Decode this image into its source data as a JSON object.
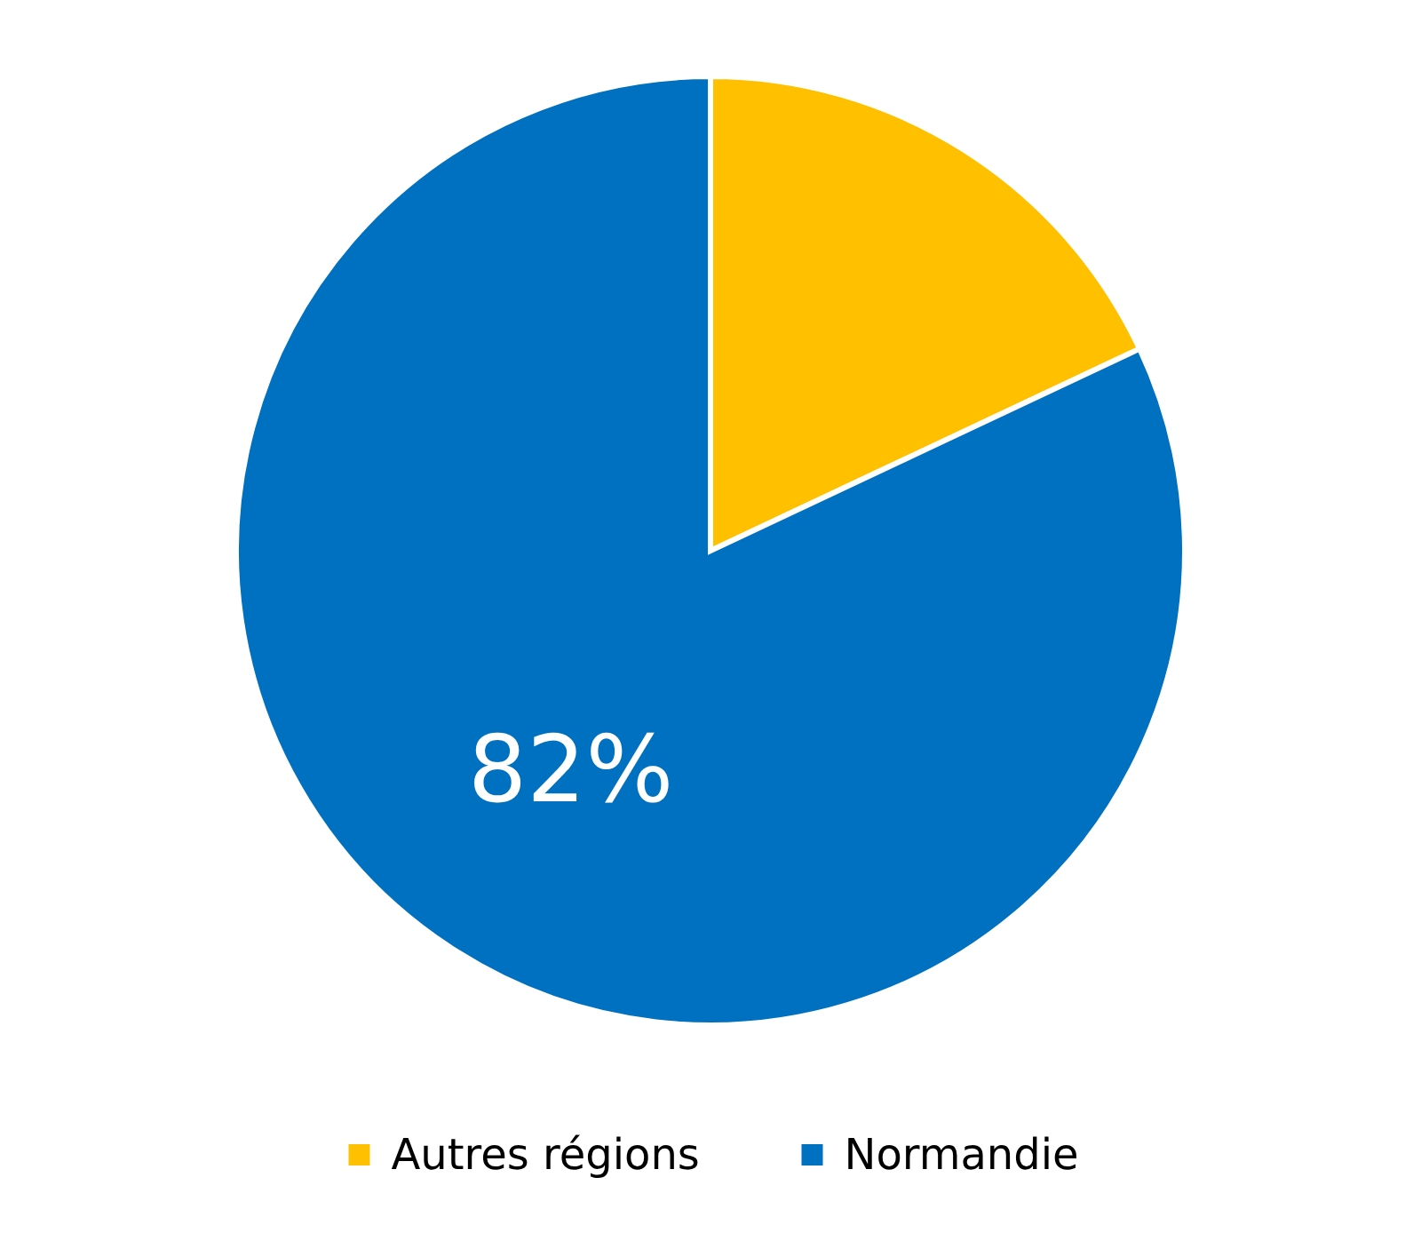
{
  "chart_data": {
    "type": "pie",
    "categories": [
      "Autres régions",
      "Normandie"
    ],
    "values": [
      18,
      82
    ],
    "colors": [
      "#ffc000",
      "#0070c0"
    ],
    "value_labels": [
      null,
      "82%"
    ],
    "legend": "bottom"
  }
}
